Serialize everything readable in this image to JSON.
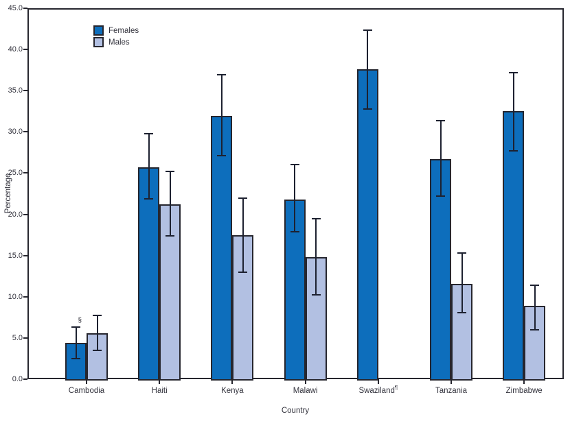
{
  "chart_data": {
    "type": "bar",
    "xlabel": "Country",
    "ylabel": "Percentage",
    "ylim": [
      0,
      45
    ],
    "ytick_step": 5,
    "ytick_decimals": 1,
    "grid": false,
    "legend_position": "top-left-inside",
    "error_bars": true,
    "categories": [
      "Cambodia",
      "Haiti",
      "Kenya",
      "Malawi",
      "Swaziland",
      "Tanzania",
      "Zimbabwe"
    ],
    "category_superscripts": [
      "",
      "",
      "",
      "",
      "¶",
      "",
      ""
    ],
    "series": [
      {
        "name": "Females",
        "color": "#0d6ebc",
        "values": [
          4.4,
          25.7,
          31.9,
          21.8,
          37.6,
          26.7,
          32.5
        ],
        "ci_low": [
          2.5,
          21.9,
          27.1,
          17.9,
          32.8,
          22.2,
          27.7
        ],
        "ci_high": [
          6.3,
          29.8,
          36.9,
          26.0,
          42.3,
          31.4,
          37.2
        ],
        "annotations": [
          "§",
          "",
          "",
          "",
          "",
          "",
          ""
        ]
      },
      {
        "name": "Males",
        "color": "#b2c0e2",
        "values": [
          5.6,
          21.2,
          17.5,
          14.8,
          null,
          11.6,
          8.9
        ],
        "ci_low": [
          3.5,
          17.4,
          13.0,
          10.2,
          null,
          8.1,
          6.0
        ],
        "ci_high": [
          7.7,
          25.2,
          22.0,
          19.5,
          null,
          15.3,
          11.4
        ],
        "annotations": [
          "",
          "",
          "",
          "",
          "",
          "",
          ""
        ]
      }
    ],
    "ink_color": "#26262e",
    "error_bar_color": "#1d2130",
    "text_color": "#33333d"
  }
}
